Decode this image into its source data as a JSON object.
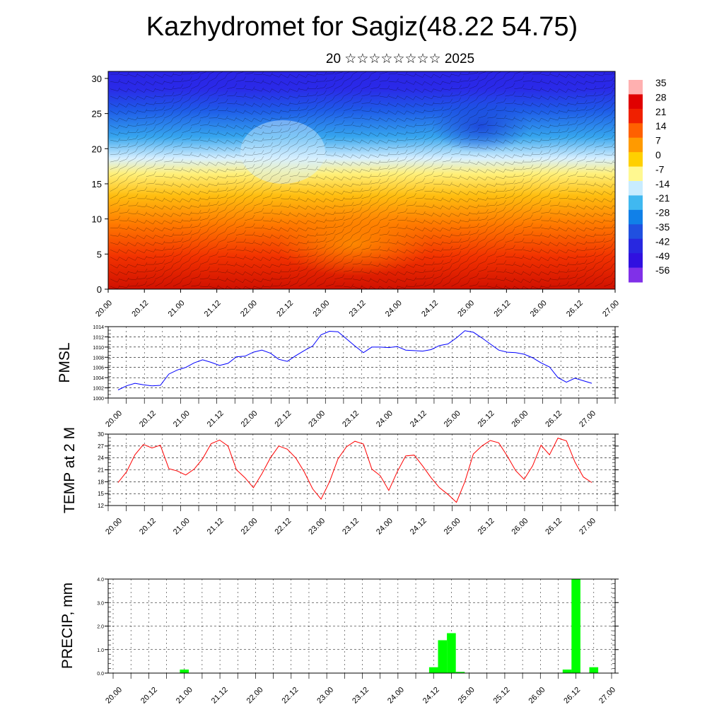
{
  "header": {
    "title": "Kazhydromet for Sagiz(48.22 54.75)",
    "subtitle": "20 ☆☆☆☆☆☆☆☆ 2025"
  },
  "time_labels": [
    "20.00",
    "20.12",
    "21.00",
    "21.12",
    "22.00",
    "22.12",
    "23.00",
    "23.12",
    "24.00",
    "24.12",
    "25.00",
    "25.12",
    "26.00",
    "26.12",
    "27.00"
  ],
  "colors": {
    "pmsl_line": "#0000ff",
    "temp_line": "#ff0000",
    "precip_bar": "#00ff00",
    "grid": "#000000"
  },
  "chart_data": [
    {
      "type": "heatmap",
      "title": "",
      "xlabel": "",
      "ylabel": "",
      "x_tick_labels": [
        "20.00",
        "20.12",
        "21.00",
        "21.12",
        "22.00",
        "22.12",
        "23.00",
        "23.12",
        "24.00",
        "24.12",
        "25.00",
        "25.12",
        "26.00",
        "26.12",
        "27.00"
      ],
      "y_ticks": [
        0,
        5,
        10,
        15,
        20,
        25,
        30
      ],
      "ylim": [
        0,
        31
      ],
      "colorbar_labels": [
        "35",
        "28",
        "21",
        "14",
        "7",
        "0",
        "-7",
        "-14",
        "-21",
        "-28",
        "-35",
        "-42",
        "-49",
        "-56"
      ],
      "colorbar_colors": [
        "#ffb0b0",
        "#e00000",
        "#f02000",
        "#ff6000",
        "#ff9a00",
        "#ffd000",
        "#fff890",
        "#c8ecff",
        "#40b8f0",
        "#1080e8",
        "#2050e0",
        "#2828e0",
        "#3010e0",
        "#8030e8"
      ],
      "overlay": "wind barbs"
    },
    {
      "type": "line",
      "ylabel": "PMSL",
      "ylim": [
        1000,
        1014
      ],
      "y_ticks": [
        "1000",
        "1002",
        "1004",
        "1006",
        "1008",
        "1010",
        "1012",
        "1014"
      ],
      "x_tick_labels": [
        "20.00",
        "20.12",
        "21.00",
        "21.12",
        "22.00",
        "22.12",
        "23.00",
        "23.12",
        "24.00",
        "24.12",
        "25.00",
        "25.12",
        "26.00",
        "26.12",
        "27.00"
      ],
      "series": [
        {
          "values": [
            1001.6,
            1002.4,
            1002.9,
            1002.6,
            1002.4,
            1002.5,
            1004.7,
            1005.5,
            1006.0,
            1006.9,
            1007.5,
            1007.0,
            1006.4,
            1006.8,
            1008.1,
            1008.2,
            1009.0,
            1009.4,
            1008.8,
            1007.6,
            1007.2,
            1008.3,
            1009.3,
            1010.2,
            1012.4,
            1013.1,
            1013.0,
            1011.6,
            1010.2,
            1008.9,
            1010.0,
            1010.0,
            1009.9,
            1010.1,
            1009.4,
            1009.3,
            1009.2,
            1009.5,
            1010.3,
            1010.6,
            1011.8,
            1013.2,
            1012.9,
            1011.8,
            1010.6,
            1009.4,
            1009.0,
            1008.9,
            1008.6,
            1007.9,
            1006.9,
            1006.1,
            1004.0,
            1003.1,
            1003.9,
            1003.4,
            1002.9
          ]
        }
      ]
    },
    {
      "type": "line",
      "ylabel": "TEMP at 2 M",
      "ylim": [
        12,
        30
      ],
      "y_ticks": [
        "12",
        "15",
        "18",
        "21",
        "24",
        "27",
        "30"
      ],
      "x_tick_labels": [
        "20.00",
        "20.12",
        "21.00",
        "21.12",
        "22.00",
        "22.12",
        "23.00",
        "23.12",
        "24.00",
        "24.12",
        "25.00",
        "25.12",
        "26.00",
        "26.12",
        "27.00"
      ],
      "series": [
        {
          "values": [
            17.8,
            20.5,
            24.8,
            27.4,
            26.5,
            27.2,
            21.3,
            20.7,
            19.7,
            21.2,
            23.8,
            27.6,
            28.5,
            27.0,
            21.0,
            19.0,
            16.5,
            20.0,
            24.0,
            27.0,
            26.2,
            24.0,
            20.5,
            16.2,
            13.6,
            18.0,
            23.8,
            26.8,
            28.2,
            27.5,
            21.2,
            19.5,
            15.8,
            20.5,
            24.5,
            24.7,
            22.0,
            19.0,
            16.5,
            14.8,
            12.8,
            18.0,
            25.0,
            27.0,
            28.4,
            27.8,
            24.5,
            20.8,
            18.6,
            22.0,
            27.2,
            24.8,
            29.0,
            28.3,
            23.0,
            19.2,
            17.8
          ]
        }
      ]
    },
    {
      "type": "bar",
      "ylabel": "PRECIP, mm",
      "ylim": [
        0,
        4
      ],
      "y_ticks": [
        "0.0",
        "1.0",
        "2.0",
        "3.0",
        "4.0"
      ],
      "x_tick_labels": [
        "20.00",
        "20.12",
        "21.00",
        "21.12",
        "22.00",
        "22.12",
        "23.00",
        "23.12",
        "24.00",
        "24.12",
        "25.00",
        "25.12",
        "26.00",
        "26.12",
        "27.00"
      ],
      "values": [
        0,
        0,
        0,
        0,
        0,
        0,
        0,
        0,
        0.15,
        0,
        0,
        0,
        0,
        0,
        0,
        0,
        0,
        0,
        0,
        0,
        0,
        0,
        0,
        0,
        0,
        0,
        0,
        0,
        0,
        0,
        0,
        0,
        0,
        0,
        0,
        0,
        0.25,
        1.4,
        1.7,
        0.05,
        0,
        0,
        0,
        0,
        0,
        0,
        0,
        0,
        0,
        0,
        0,
        0.15,
        4.0,
        0,
        0.25,
        0,
        0
      ]
    }
  ]
}
